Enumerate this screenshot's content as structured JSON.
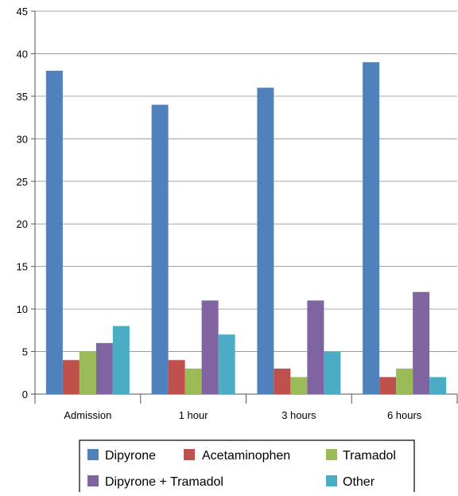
{
  "chart_data": {
    "type": "bar",
    "title": "",
    "xlabel": "",
    "ylabel": "",
    "ylim": [
      0,
      45
    ],
    "yticks": [
      0,
      5,
      10,
      15,
      20,
      25,
      30,
      35,
      40,
      45
    ],
    "grid": true,
    "legend_position": "bottom",
    "categories": [
      "Admission",
      "1 hour",
      "3 hours",
      "6 hours"
    ],
    "series": [
      {
        "name": "Dipyrone",
        "color": "#4F81BD",
        "values": [
          38,
          34,
          36,
          39
        ]
      },
      {
        "name": "Acetaminophen",
        "color": "#C0504D",
        "values": [
          4,
          4,
          3,
          2
        ]
      },
      {
        "name": "Tramadol",
        "color": "#9BBB59",
        "values": [
          5,
          3,
          2,
          3
        ]
      },
      {
        "name": "Dipyrone + Tramadol",
        "color": "#8064A2",
        "values": [
          6,
          11,
          11,
          12
        ]
      },
      {
        "name": "Other",
        "color": "#4BACC6",
        "values": [
          8,
          7,
          5,
          2
        ]
      }
    ]
  }
}
